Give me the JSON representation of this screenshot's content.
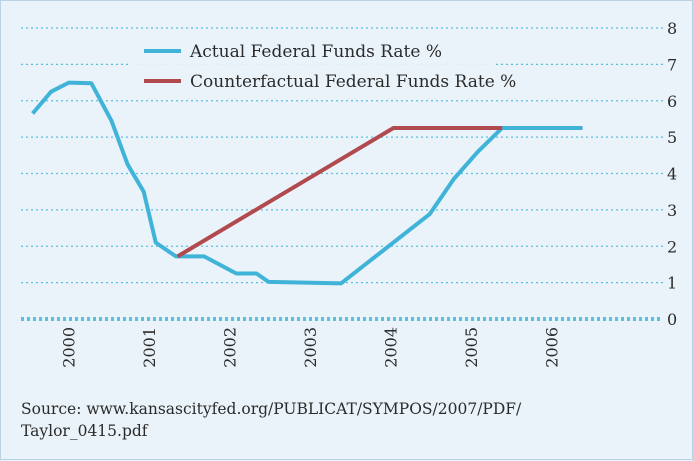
{
  "colors": {
    "background": "#eaf3f9",
    "actual": "#40b3d8",
    "counterfactual": "#b14a4e",
    "grid": "#59c0e0",
    "text": "#2b2b2b"
  },
  "chart_data": {
    "type": "line",
    "title": "",
    "xlabel": "",
    "ylabel": "",
    "ylim": [
      0,
      8
    ],
    "xlim": [
      1999.6,
      2007.2
    ],
    "y_ticks": [
      "0",
      "1",
      "2",
      "3",
      "4",
      "5",
      "6",
      "7",
      "8"
    ],
    "x_ticks": [
      "2000",
      "2001",
      "2002",
      "2003",
      "2004",
      "2005",
      "2006"
    ],
    "y_axis_position": "right",
    "grid": "horizontal dotted",
    "legend_position": "top-center",
    "series": [
      {
        "name": "Actual Federal Funds Rate %",
        "color": "#40b3d8",
        "points": [
          [
            1999.62,
            5.65
          ],
          [
            1999.85,
            6.25
          ],
          [
            2000.07,
            6.5
          ],
          [
            2000.35,
            6.48
          ],
          [
            2000.6,
            5.45
          ],
          [
            2000.8,
            4.25
          ],
          [
            2001.0,
            3.5
          ],
          [
            2001.15,
            2.1
          ],
          [
            2001.4,
            1.72
          ],
          [
            2001.75,
            1.72
          ],
          [
            2002.15,
            1.25
          ],
          [
            2002.4,
            1.25
          ],
          [
            2002.55,
            1.02
          ],
          [
            2003.45,
            0.98
          ],
          [
            2004.55,
            2.88
          ],
          [
            2004.85,
            3.85
          ],
          [
            2005.15,
            4.6
          ],
          [
            2005.45,
            5.25
          ],
          [
            2006.45,
            5.25
          ]
        ]
      },
      {
        "name": "Counterfactual Federal Funds Rate %",
        "color": "#b14a4e",
        "points": [
          [
            2001.42,
            1.72
          ],
          [
            2004.1,
            5.25
          ],
          [
            2005.45,
            5.25
          ]
        ]
      }
    ]
  },
  "legend": [
    {
      "label": "Actual Federal Funds Rate %",
      "color": "#40b3d8"
    },
    {
      "label": "Counterfactual Federal Funds Rate %",
      "color": "#b14a4e"
    }
  ],
  "source": {
    "line1": "Source: www.kansascityfed.org/PUBLICAT/SYMPOS/2007/PDF/",
    "line2": "Taylor_0415.pdf"
  }
}
